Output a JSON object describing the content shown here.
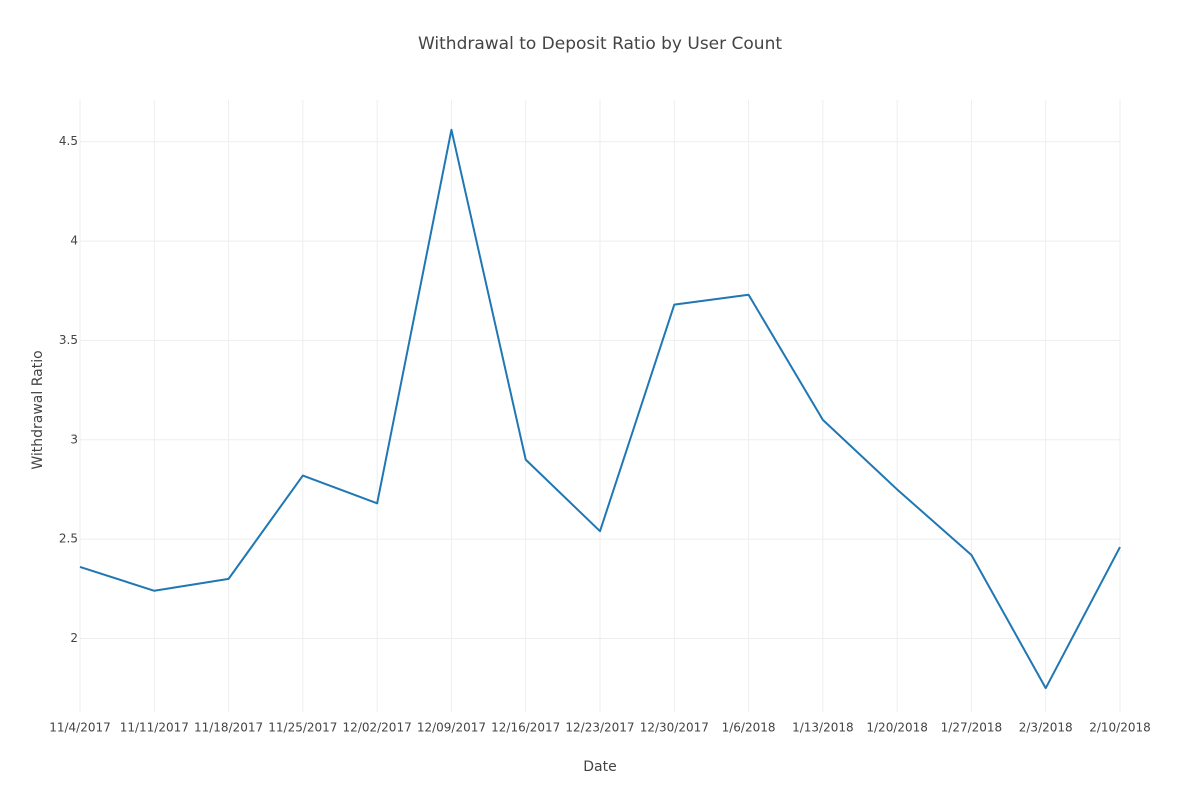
{
  "chart_data": {
    "type": "line",
    "title": "Withdrawal to Deposit Ratio by User Count",
    "x_label": "Date",
    "y_label": "Withdrawal Ratio",
    "categories": [
      "11/4/2017",
      "11/11/2017",
      "11/18/2017",
      "11/25/2017",
      "12/02/2017",
      "12/09/2017",
      "12/16/2017",
      "12/23/2017",
      "12/30/2017",
      "1/6/2018",
      "1/13/2018",
      "1/20/2018",
      "1/27/2018",
      "2/3/2018",
      "2/10/2018"
    ],
    "series": [
      {
        "color": "#1f77b4",
        "values": [
          2.36,
          2.24,
          2.3,
          2.82,
          2.68,
          4.56,
          2.9,
          2.54,
          3.68,
          3.73,
          3.1,
          2.75,
          2.42,
          1.75,
          2.46
        ]
      }
    ],
    "ylim": [
      1.63,
      4.71
    ],
    "yticks": [
      2,
      2.5,
      3,
      3.5,
      4,
      4.5
    ],
    "grid": true
  }
}
